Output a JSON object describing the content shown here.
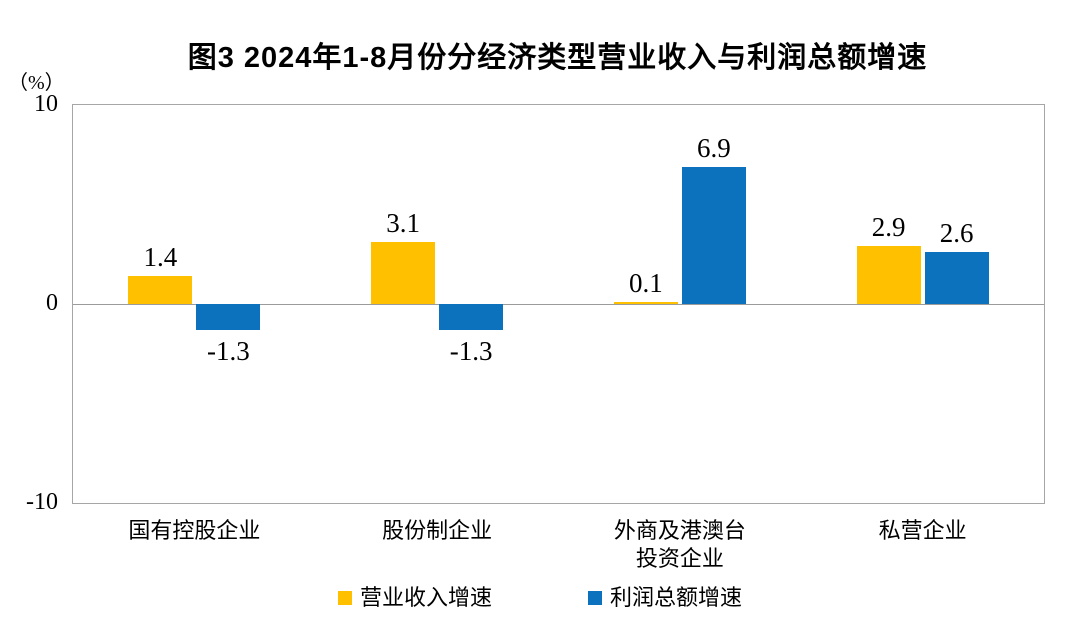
{
  "title": "图3 2024年1-8月份分经济类型营业收入与利润总额增速",
  "unit_label": "（%）",
  "chart_data": {
    "type": "bar",
    "title": "图3 2024年1-8月份分经济类型营业收入与利润总额增速",
    "categories": [
      "国有控股企业",
      "股份制企业",
      "外商及港澳台\n投资企业",
      "私营企业"
    ],
    "series": [
      {
        "name": "营业收入增速",
        "color": "#FFC000",
        "values": [
          1.4,
          3.1,
          0.1,
          2.9
        ]
      },
      {
        "name": "利润总额增速",
        "color": "#0D72BE",
        "values": [
          -1.3,
          -1.3,
          6.9,
          2.6
        ]
      }
    ],
    "ylabel": "（%）",
    "xlabel": "",
    "ylim": [
      -10,
      10
    ],
    "yticks": [
      10,
      0,
      -10
    ],
    "grid": "zero-line-only",
    "legend_position": "bottom",
    "frame_color": "#a6a6a6",
    "zero_line_color": "#9b9b9b",
    "label_color": "#000000"
  }
}
